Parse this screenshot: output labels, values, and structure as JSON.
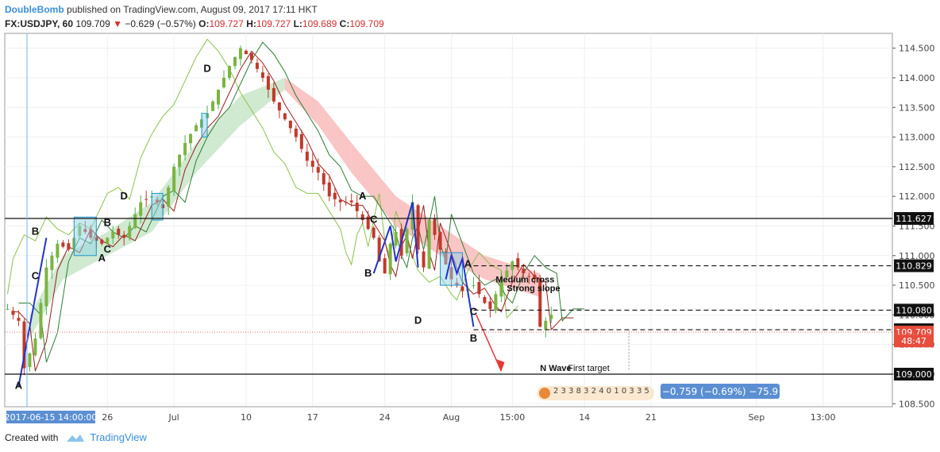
{
  "header": {
    "author": "DoubleBomb",
    "published": "published on TradingView.com, August 09, 2017 17:11 HKT"
  },
  "quote": {
    "symbol": "FX:USDJPY, 60",
    "last": "109.709",
    "change": "−0.629 (−0.57%)",
    "open_label": "O:",
    "open": "109.727",
    "high_label": "H:",
    "high": "109.727",
    "low_label": "L:",
    "low": "109.689",
    "close_label": "C:",
    "close": "109.709"
  },
  "footer": {
    "created_with": "Created with",
    "brand": "TradingView"
  },
  "chart_data": {
    "type": "line",
    "title": "",
    "grid": true,
    "ylim": [
      108.45,
      114.75
    ],
    "y_ticks": [
      108.5,
      109.0,
      109.5,
      110.0,
      110.5,
      111.0,
      111.5,
      112.0,
      112.5,
      113.0,
      113.5,
      114.0,
      114.5
    ],
    "y_tick_labels": [
      "108.500",
      "109.000",
      "109.500",
      "110.000",
      "110.500",
      "111.000",
      "111.500",
      "112.000",
      "112.500",
      "113.000",
      "113.500",
      "114.000",
      "114.500"
    ],
    "x_ticks": [
      "26",
      "Jul",
      "10",
      "17",
      "24",
      "Aug",
      "15:00",
      "14",
      "21",
      "Sep",
      "13:00"
    ],
    "x_tick_index": [
      18,
      30,
      43,
      55,
      68,
      80,
      91,
      104,
      116,
      135,
      147
    ],
    "x_cursor_label": "2017-06-15 14:00:00",
    "n_bars": 160,
    "price_path": [
      [
        0,
        110.1
      ],
      [
        2,
        109.9
      ],
      [
        3,
        109.1
      ],
      [
        5,
        109.6
      ],
      [
        7,
        110.8
      ],
      [
        9,
        111.2
      ],
      [
        11,
        111.1
      ],
      [
        13,
        111.5
      ],
      [
        15,
        111.3
      ],
      [
        17,
        111.2
      ],
      [
        19,
        111.4
      ],
      [
        21,
        111.3
      ],
      [
        24,
        111.9
      ],
      [
        26,
        112.0
      ],
      [
        28,
        111.8
      ],
      [
        30,
        112.5
      ],
      [
        32,
        112.9
      ],
      [
        34,
        113.2
      ],
      [
        36,
        113.4
      ],
      [
        38,
        113.8
      ],
      [
        40,
        114.2
      ],
      [
        42,
        114.5
      ],
      [
        44,
        114.3
      ],
      [
        46,
        114.0
      ],
      [
        48,
        113.6
      ],
      [
        50,
        113.3
      ],
      [
        52,
        113.0
      ],
      [
        54,
        112.6
      ],
      [
        56,
        112.4
      ],
      [
        58,
        112.0
      ],
      [
        60,
        111.9
      ],
      [
        62,
        111.9
      ],
      [
        64,
        111.6
      ],
      [
        66,
        111.3
      ],
      [
        67,
        110.9
      ],
      [
        68,
        110.7
      ],
      [
        69,
        111.2
      ],
      [
        70,
        111.4
      ],
      [
        71,
        111.0
      ],
      [
        73,
        111.9
      ],
      [
        74,
        111.1
      ],
      [
        75,
        110.8
      ],
      [
        76,
        111.6
      ],
      [
        78,
        111.1
      ],
      [
        80,
        110.6
      ],
      [
        82,
        110.4
      ],
      [
        84,
        110.5
      ],
      [
        86,
        110.2
      ],
      [
        87,
        110.1
      ],
      [
        89,
        110.6
      ],
      [
        91,
        110.9
      ],
      [
        93,
        110.7
      ],
      [
        95,
        110.6
      ],
      [
        96,
        109.8
      ],
      [
        97,
        109.9
      ],
      [
        98,
        110.0
      ]
    ],
    "cloud_spans": [
      [
        [
          4,
          109.6,
          110.0
        ],
        [
          10,
          110.6,
          111.0
        ],
        [
          18,
          111.0,
          111.4
        ],
        [
          26,
          111.4,
          111.9
        ],
        [
          34,
          112.4,
          112.9
        ],
        [
          42,
          113.2,
          113.7
        ],
        [
          50,
          113.8,
          114.0
        ],
        [
          56,
          113.2,
          113.6
        ],
        [
          62,
          112.4,
          112.9
        ],
        [
          70,
          111.5,
          112.0
        ],
        [
          78,
          111.0,
          111.5
        ],
        [
          86,
          110.6,
          111.0
        ],
        [
          96,
          110.3,
          110.7
        ]
      ]
    ],
    "hlines": [
      {
        "price": 111.627,
        "label": "111.627",
        "style": "solid"
      },
      {
        "price": 110.829,
        "label": "110.829",
        "style": "dashed"
      },
      {
        "price": 110.08,
        "label": "110.080",
        "style": "dashed"
      },
      {
        "price": 109.749,
        "label": "109.749",
        "style": "dashed"
      },
      {
        "price": 109.0,
        "label": "109.000",
        "style": "solid"
      }
    ],
    "price_tags": [
      {
        "price": 109.709,
        "label": "109.709",
        "color": "#e74c3c"
      },
      {
        "price": 109.56,
        "label": "48:47",
        "color": "#e74c3c"
      }
    ],
    "wave_labels": [
      {
        "text": "A",
        "i": 2,
        "p": 108.75
      },
      {
        "text": "B",
        "i": 5,
        "p": 111.35
      },
      {
        "text": "C",
        "i": 5,
        "p": 110.6
      },
      {
        "text": "A",
        "i": 17,
        "p": 110.9
      },
      {
        "text": "B",
        "i": 18,
        "p": 111.5
      },
      {
        "text": "C",
        "i": 18,
        "p": 111.05
      },
      {
        "text": "D",
        "i": 21,
        "p": 111.95
      },
      {
        "text": "D",
        "i": 36,
        "p": 114.1
      },
      {
        "text": "A",
        "i": 64,
        "p": 111.95
      },
      {
        "text": "C",
        "i": 66,
        "p": 111.55
      },
      {
        "text": "B",
        "i": 65,
        "p": 110.65
      },
      {
        "text": "D",
        "i": 74,
        "p": 109.85
      },
      {
        "text": "A",
        "i": 83,
        "p": 110.8
      },
      {
        "text": "C",
        "i": 84,
        "p": 110.0
      },
      {
        "text": "B",
        "i": 84,
        "p": 109.55
      }
    ],
    "notes": [
      {
        "text": "Medium cross",
        "i": 88,
        "p": 110.55
      },
      {
        "text": "Strong slope",
        "i": 90,
        "p": 110.4
      },
      {
        "text": "N Wave",
        "i": 96,
        "p": 109.05
      },
      {
        "text": "First target",
        "i": 101,
        "p": 109.05
      }
    ],
    "boxes": [
      [
        12,
        111.0,
        16,
        111.65
      ],
      [
        26,
        111.6,
        28,
        112.05
      ],
      [
        35,
        113.0,
        36,
        113.4
      ],
      [
        78,
        110.5,
        82,
        111.05
      ]
    ],
    "stats_label": "−0.759 (−0.69%) −75.9",
    "scroller_digits": "2 3 3 8 3 2 4 0 1 0 3 3 5"
  },
  "colors": {
    "tenkan": "#9b1e1e",
    "kijun": "#2e7d32",
    "chikou": "#8bc34a",
    "cloud_bull": "#c8e6c9",
    "cloud_bear": "#f8bbbb",
    "box_fill": "#8fd3e8",
    "box_stroke": "#2196c9",
    "wave_blue": "#2233cc",
    "arrow_red": "#e53935",
    "stats_bg": "#5b8fd2"
  }
}
